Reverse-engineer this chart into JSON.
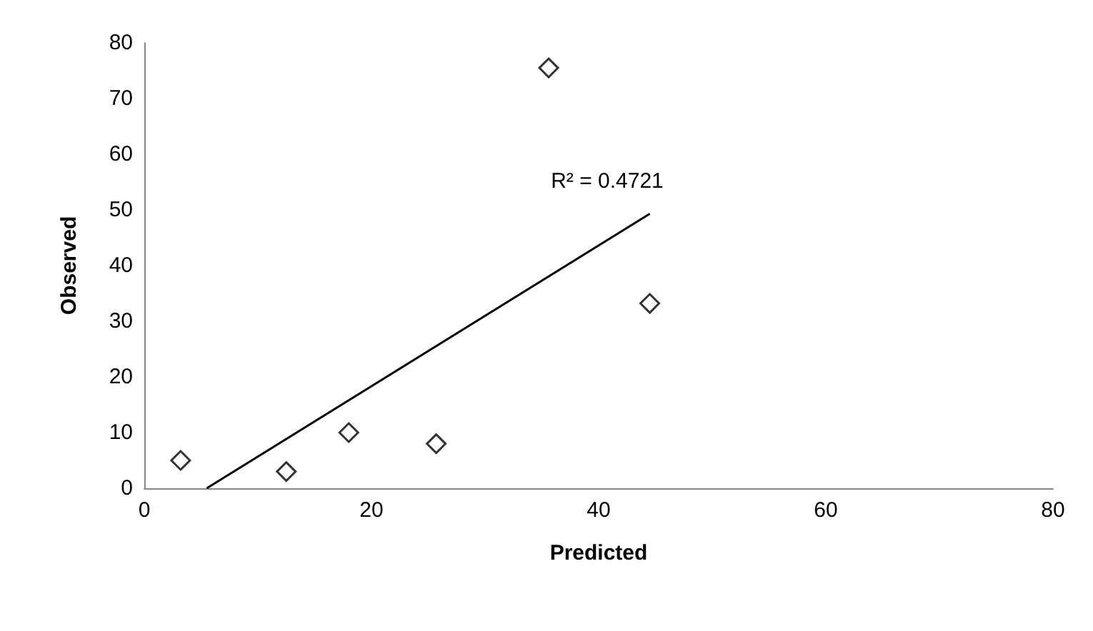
{
  "chart_data": {
    "type": "scatter",
    "xlabel": "Predicted",
    "ylabel": "Observed",
    "grid": false,
    "xlim": [
      0,
      80
    ],
    "xticks": [
      0,
      20,
      40,
      60,
      80
    ],
    "ylim": [
      0,
      80
    ],
    "yticks": [
      0,
      10,
      20,
      30,
      40,
      50,
      60,
      70,
      80
    ],
    "series": [
      {
        "color": "#000000",
        "marker": "diamond",
        "x": [
          3.2,
          12.5,
          18,
          25.7,
          35.6,
          44.5
        ],
        "values": [
          5,
          3,
          10,
          8,
          75.5,
          33.2
        ]
      },
      {
        "type": "line",
        "marker": "none",
        "color": "#000000",
        "x": [
          5.5,
          44.5
        ],
        "values": [
          0,
          49.3
        ]
      }
    ],
    "annotations": [
      "R² = 0.4721"
    ]
  }
}
